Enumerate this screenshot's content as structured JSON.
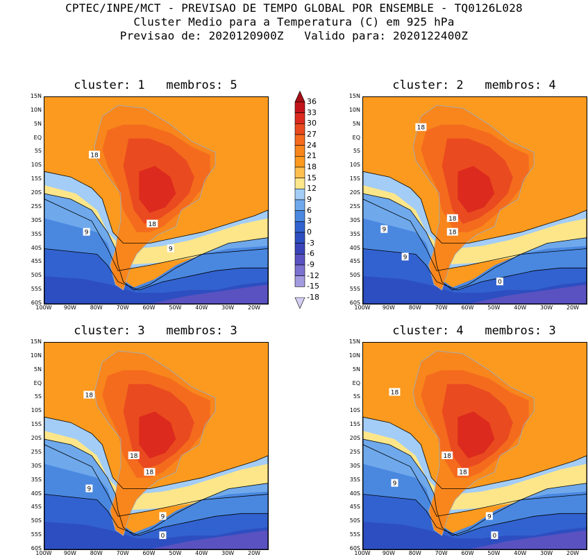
{
  "header": {
    "line1": "CPTEC/INPE/MCT - PREVISAO DE TEMPO GLOBAL POR ENSEMBLE - TQ0126L028",
    "line2": "Cluster Medio para a Temperatura (C) em 925 hPa",
    "line3": "Previsao de: 2020120900Z   Valido para: 2020122400Z"
  },
  "lat_ticks": [
    "15N",
    "10N",
    "5N",
    "EQ",
    "5S",
    "10S",
    "15S",
    "20S",
    "25S",
    "30S",
    "35S",
    "40S",
    "45S",
    "50S",
    "55S",
    "60S"
  ],
  "lon_ticks": [
    "100W",
    "90W",
    "80W",
    "70W",
    "60W",
    "50W",
    "40W",
    "30W",
    "20W"
  ],
  "panels": [
    {
      "title": "cluster: 1   membros: 5",
      "contour_labels": [
        "18",
        "18",
        "9",
        "9"
      ]
    },
    {
      "title": "cluster: 2   membros: 4",
      "contour_labels": [
        "18",
        "18",
        "18",
        "9",
        "9",
        "0"
      ]
    },
    {
      "title": "cluster: 3   membros: 3",
      "contour_labels": [
        "18",
        "18",
        "18",
        "9",
        "9",
        "0"
      ]
    },
    {
      "title": "cluster: 4   membros: 3",
      "contour_labels": [
        "18",
        "18",
        "18",
        "9",
        "9",
        "0"
      ]
    }
  ],
  "colorbar": {
    "levels": [
      "36",
      "33",
      "30",
      "27",
      "24",
      "21",
      "18",
      "15",
      "12",
      "9",
      "6",
      "3",
      "0",
      "-3",
      "-6",
      "-9",
      "-12",
      "-15",
      "-18"
    ],
    "colors": [
      "#a50f15",
      "#c4141b",
      "#dc2a1e",
      "#ea4a1f",
      "#f46b1e",
      "#f8861c",
      "#fb9a1e",
      "#fdc050",
      "#fde68a",
      "#a3cdf6",
      "#6fa9ec",
      "#4a88e0",
      "#3262cf",
      "#2d4ec0",
      "#3a44b8",
      "#5a52c0",
      "#7b71cf",
      "#a39be0",
      "#d3cef2"
    ]
  }
}
